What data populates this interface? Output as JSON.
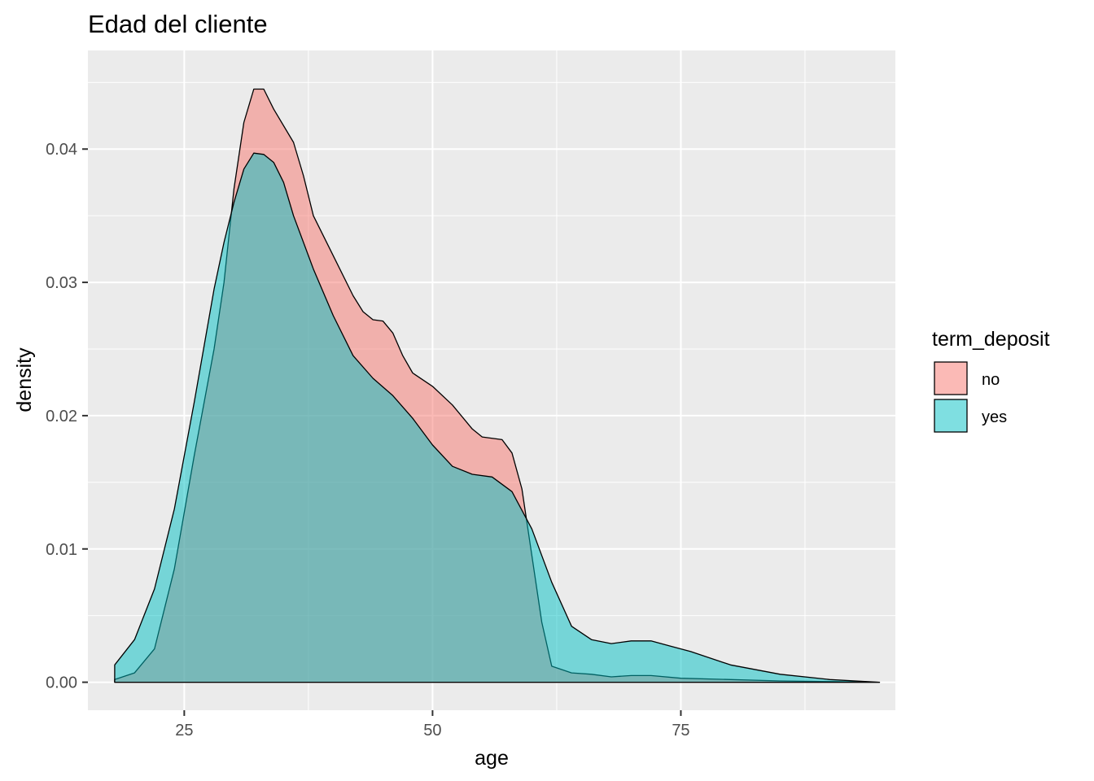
{
  "chart_data": {
    "type": "area",
    "title": "Edad del cliente",
    "xlabel": "age",
    "ylabel": "density",
    "xlim": [
      15.3,
      96.6
    ],
    "ylim": [
      -0.0021,
      0.0474
    ],
    "x_ticks": [
      25,
      50,
      75
    ],
    "x_tick_labels": [
      "25",
      "50",
      "75"
    ],
    "y_ticks": [
      0.0,
      0.01,
      0.02,
      0.03,
      0.04
    ],
    "y_tick_labels": [
      "0.00",
      "0.01",
      "0.02",
      "0.03",
      "0.04"
    ],
    "grid": true,
    "legend": {
      "title": "term_deposit",
      "position": "right"
    },
    "series": [
      {
        "name": "no",
        "color": "#F8766D",
        "points": [
          [
            18,
            0.0002
          ],
          [
            20,
            0.0007
          ],
          [
            22,
            0.0025
          ],
          [
            24,
            0.0085
          ],
          [
            26,
            0.017
          ],
          [
            28,
            0.025
          ],
          [
            29,
            0.03
          ],
          [
            30,
            0.037
          ],
          [
            31,
            0.042
          ],
          [
            32,
            0.0445
          ],
          [
            33,
            0.0445
          ],
          [
            34,
            0.043
          ],
          [
            36,
            0.0405
          ],
          [
            37,
            0.038
          ],
          [
            38,
            0.035
          ],
          [
            40,
            0.032
          ],
          [
            42,
            0.029
          ],
          [
            43,
            0.0278
          ],
          [
            44,
            0.0272
          ],
          [
            45,
            0.0271
          ],
          [
            46,
            0.0262
          ],
          [
            47,
            0.0245
          ],
          [
            48,
            0.0232
          ],
          [
            50,
            0.0222
          ],
          [
            52,
            0.0208
          ],
          [
            54,
            0.019
          ],
          [
            55,
            0.0184
          ],
          [
            57,
            0.0182
          ],
          [
            58,
            0.0172
          ],
          [
            59,
            0.0145
          ],
          [
            60,
            0.0095
          ],
          [
            61,
            0.0045
          ],
          [
            62,
            0.0012
          ],
          [
            64,
            0.0007
          ],
          [
            66,
            0.0006
          ],
          [
            68,
            0.0004
          ],
          [
            70,
            0.0005
          ],
          [
            72,
            0.0005
          ],
          [
            75,
            0.0003
          ],
          [
            80,
            0.0002
          ],
          [
            85,
            0.0001
          ],
          [
            90,
            5e-05
          ],
          [
            95,
            0.0
          ]
        ]
      },
      {
        "name": "yes",
        "color": "#00BFC4",
        "points": [
          [
            18,
            0.0013
          ],
          [
            20,
            0.0032
          ],
          [
            22,
            0.007
          ],
          [
            24,
            0.013
          ],
          [
            26,
            0.021
          ],
          [
            28,
            0.0295
          ],
          [
            29,
            0.033
          ],
          [
            30,
            0.036
          ],
          [
            31,
            0.0385
          ],
          [
            32,
            0.0397
          ],
          [
            33,
            0.0396
          ],
          [
            34,
            0.039
          ],
          [
            35,
            0.0375
          ],
          [
            36,
            0.035
          ],
          [
            38,
            0.031
          ],
          [
            40,
            0.0275
          ],
          [
            42,
            0.0245
          ],
          [
            44,
            0.0228
          ],
          [
            46,
            0.0215
          ],
          [
            48,
            0.0198
          ],
          [
            50,
            0.0178
          ],
          [
            52,
            0.0162
          ],
          [
            54,
            0.0156
          ],
          [
            56,
            0.0154
          ],
          [
            58,
            0.0143
          ],
          [
            60,
            0.0115
          ],
          [
            62,
            0.0075
          ],
          [
            64,
            0.0042
          ],
          [
            66,
            0.0032
          ],
          [
            68,
            0.0029
          ],
          [
            70,
            0.0031
          ],
          [
            72,
            0.0031
          ],
          [
            74,
            0.0027
          ],
          [
            76,
            0.0023
          ],
          [
            80,
            0.0013
          ],
          [
            85,
            0.0006
          ],
          [
            90,
            0.0002
          ],
          [
            95,
            0.0
          ]
        ]
      }
    ]
  }
}
